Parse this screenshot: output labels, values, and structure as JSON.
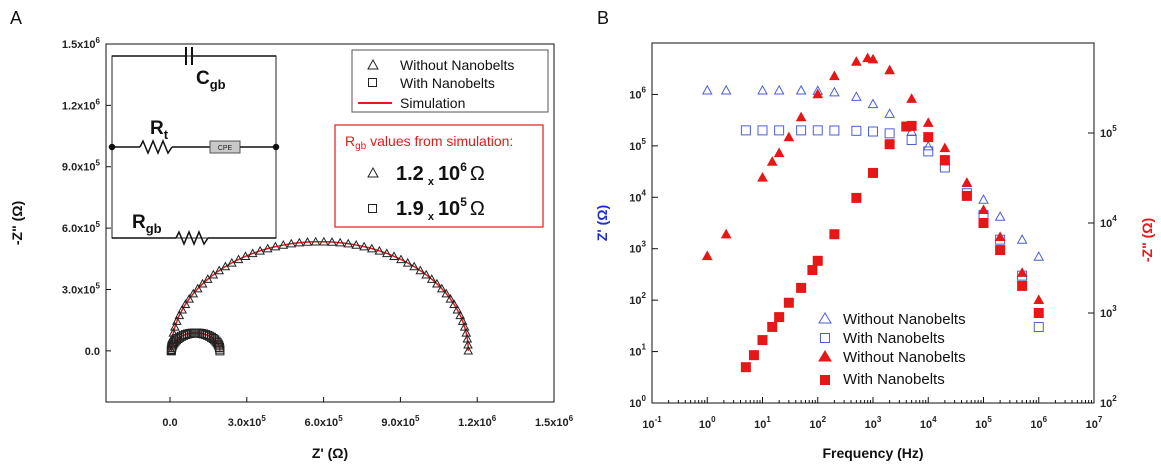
{
  "figure": {
    "panel_labels": [
      "A",
      "B"
    ],
    "sim_box": {
      "title_prefix": "R",
      "title_sub": "gb",
      "title_suffix": " values from simulation:",
      "rows": [
        {
          "mant": "1.2",
          "times": "x",
          "base": "10",
          "exp": "6",
          "unit": "Ω"
        },
        {
          "mant": "1.9",
          "times": "x",
          "base": "10",
          "exp": "5",
          "unit": "Ω"
        }
      ]
    },
    "circuit": {
      "c_main": "C",
      "c_sub": "gb",
      "rt_main": "R",
      "rt_sub": "t",
      "cpe": "CPE",
      "rgb_main": "R",
      "rgb_sub": "gb"
    }
  },
  "chart_data": [
    {
      "type": "scatter",
      "panel": "A",
      "xlabel": "Z' (Ω)",
      "ylabel": "-Z\" (Ω)",
      "xlim": [
        -250000,
        1500000
      ],
      "ylim": [
        -250000,
        1500000
      ],
      "x_ticks": [
        {
          "v": 0,
          "label": "0.0"
        },
        {
          "v": 300000,
          "m": "3.0x10",
          "e": "5"
        },
        {
          "v": 600000,
          "m": "6.0x10",
          "e": "5"
        },
        {
          "v": 900000,
          "m": "9.0x10",
          "e": "5"
        },
        {
          "v": 1200000,
          "m": "1.2x10",
          "e": "6"
        },
        {
          "v": 1500000,
          "m": "1.5x10",
          "e": "6"
        }
      ],
      "y_ticks": [
        {
          "v": 0,
          "label": "0.0"
        },
        {
          "v": 300000,
          "m": "3.0x10",
          "e": "5"
        },
        {
          "v": 600000,
          "m": "6.0x10",
          "e": "5"
        },
        {
          "v": 900000,
          "m": "9.0x10",
          "e": "5"
        },
        {
          "v": 1200000,
          "m": "1.2x10",
          "e": "6"
        },
        {
          "v": 1500000,
          "m": "1.5x10",
          "e": "6"
        }
      ],
      "legend": [
        "Without Nanobelts",
        "With Nanobelts",
        "Simulation"
      ],
      "legend_position": "top-right",
      "series": [
        {
          "name": "Without Nanobelts",
          "marker": "triangle-open",
          "color": "#222222",
          "r": 580000,
          "cx": 585000,
          "points": 58
        },
        {
          "name": "With Nanobelts",
          "marker": "square-open",
          "color": "#222222",
          "r": 95000,
          "cx": 100000,
          "points": 34
        },
        {
          "name": "Simulation",
          "marker": "line",
          "color": "#e31a1c",
          "arcs": [
            {
              "r": 580000,
              "cx": 585000
            },
            {
              "r": 95000,
              "cx": 100000
            }
          ]
        }
      ]
    },
    {
      "type": "scatter",
      "panel": "B",
      "xlabel": "Frequency (Hz)",
      "ylabel_left": "Z' (Ω)",
      "ylabel_right": "-Z\" (Ω)",
      "x_scale": "log",
      "y_scale": "log",
      "xlim": [
        0.1,
        10000000
      ],
      "ylim_left": [
        1,
        10000000
      ],
      "ylim_right": [
        100,
        1000000
      ],
      "x_ticks": [
        "10^-1",
        "10^0",
        "10^1",
        "10^2",
        "10^3",
        "10^4",
        "10^5",
        "10^6",
        "10^7"
      ],
      "legend": [
        "Without Nanobelts",
        "With Nanobelts",
        "Without Nanobelts",
        "With Nanobelts"
      ],
      "legend_position": "bottom-right",
      "series": [
        {
          "name": "Without Nanobelts",
          "axis": "left",
          "marker": "triangle-open",
          "color": "#4c5ed6",
          "x": [
            1.0,
            2.2,
            10,
            20,
            50,
            100,
            200,
            500,
            1000,
            2000,
            5000,
            10000,
            20000,
            50000,
            100000,
            200000,
            500000,
            1000000
          ],
          "y": [
            1200000,
            1200000,
            1200000,
            1200000,
            1200000,
            1180000,
            1100000,
            900000,
            650000,
            420000,
            190000,
            98000,
            50000,
            19000,
            9000,
            4200,
            1500,
            700
          ]
        },
        {
          "name": "With Nanobelts",
          "axis": "left",
          "marker": "square-open",
          "color": "#4c5ed6",
          "x": [
            5,
            10,
            20,
            50,
            100,
            200,
            500,
            1000,
            2000,
            5000,
            10000,
            20000,
            50000,
            100000,
            200000,
            500000,
            1000000
          ],
          "y": [
            200000,
            200000,
            200000,
            200000,
            200000,
            199000,
            196000,
            190000,
            175000,
            130000,
            78000,
            38000,
            12000,
            4500,
            1500,
            300,
            30
          ]
        },
        {
          "name": "Without Nanobelts",
          "axis": "right",
          "marker": "triangle-filled",
          "color": "#e61717",
          "x": [
            1.0,
            2.2,
            10,
            15,
            20,
            30,
            50,
            100,
            200,
            500,
            800,
            1000,
            2000,
            5000,
            10000,
            20000,
            50000,
            100000,
            200000,
            500000,
            1000000
          ],
          "y": [
            4300,
            7500,
            32000,
            48000,
            60000,
            90000,
            150000,
            270000,
            430000,
            620000,
            680000,
            660000,
            500000,
            240000,
            130000,
            68000,
            28000,
            14000,
            7000,
            2800,
            1400
          ]
        },
        {
          "name": "With Nanobelts",
          "axis": "right",
          "marker": "square-filled",
          "color": "#e61717",
          "x": [
            5,
            7,
            10,
            15,
            20,
            30,
            50,
            80,
            100,
            200,
            500,
            1000,
            2000,
            4000,
            5000,
            10000,
            20000,
            50000,
            100000,
            200000,
            500000,
            1000000
          ],
          "y": [
            250,
            340,
            500,
            700,
            900,
            1300,
            1900,
            3000,
            3800,
            7500,
            19000,
            36000,
            75000,
            118000,
            120000,
            90000,
            50000,
            20000,
            10000,
            5000,
            2000,
            1000
          ]
        }
      ]
    }
  ]
}
